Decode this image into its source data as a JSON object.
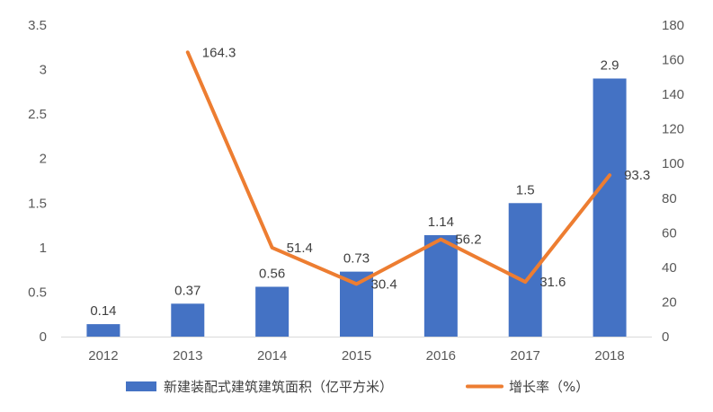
{
  "chart_data": {
    "type": "bar+line",
    "categories": [
      "2012",
      "2013",
      "2014",
      "2015",
      "2016",
      "2017",
      "2018"
    ],
    "series": [
      {
        "name": "新建装配式建筑建筑面积（亿平方米）",
        "type": "bar",
        "axis": "left",
        "values": [
          0.14,
          0.37,
          0.56,
          0.73,
          1.14,
          1.5,
          2.9
        ],
        "labels": [
          "0.14",
          "0.37",
          "0.56",
          "0.73",
          "1.14",
          "1.5",
          "2.9"
        ],
        "color": "#4472C4"
      },
      {
        "name": "增长率（%）",
        "type": "line",
        "axis": "right",
        "values": [
          null,
          164.3,
          51.4,
          30.4,
          56.2,
          31.6,
          93.3
        ],
        "labels": [
          "",
          "164.3",
          "51.4",
          "30.4",
          "56.2",
          "31.6",
          "93.3"
        ],
        "color": "#ED7D31"
      }
    ],
    "y_left": {
      "min": 0,
      "max": 3.5,
      "ticks": [
        "0",
        "0.5",
        "1",
        "1.5",
        "2",
        "2.5",
        "3",
        "3.5"
      ]
    },
    "y_right": {
      "min": 0,
      "max": 180,
      "ticks": [
        "0",
        "20",
        "40",
        "60",
        "80",
        "100",
        "120",
        "140",
        "160",
        "180"
      ]
    },
    "grid": false,
    "legend": "bottom"
  }
}
